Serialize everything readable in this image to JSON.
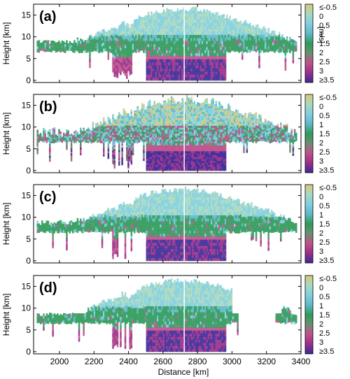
{
  "chart_data": {
    "type": "heatmap",
    "xlabel": "Distance [km]",
    "ylabel": "Height [km]",
    "xlim": [
      1850,
      3400
    ],
    "ylim": [
      -0.5,
      17.5
    ],
    "xticks": [
      2000,
      2200,
      2400,
      2600,
      2800,
      3000,
      3200,
      3400
    ],
    "yticks": [
      0,
      5,
      10,
      15
    ],
    "colorbar": {
      "label": "[m/s]",
      "range": [
        -0.5,
        3.5
      ],
      "tick_labels": [
        "≤-0.5",
        "0",
        "0.5",
        "1",
        "1.5",
        "2",
        "2.5",
        "3",
        "≥3.5"
      ],
      "colors": [
        "#d8c878",
        "#a8d8c0",
        "#7fcfe0",
        "#5fb8c8",
        "#2e9a5a",
        "#6a8f70",
        "#c0508a",
        "#9a2f8a",
        "#3a2a9a"
      ]
    },
    "panels": [
      {
        "label": "(a)"
      },
      {
        "label": "(b)"
      },
      {
        "label": "(c)"
      },
      {
        "label": "(d)"
      }
    ],
    "features": {
      "cloud_base_band": [
        6.5,
        8.5
      ],
      "anvil_top": 16.5,
      "precip_region": {
        "x": [
          2520,
          2950
        ],
        "y": [
          0,
          4.5
        ]
      }
    }
  }
}
